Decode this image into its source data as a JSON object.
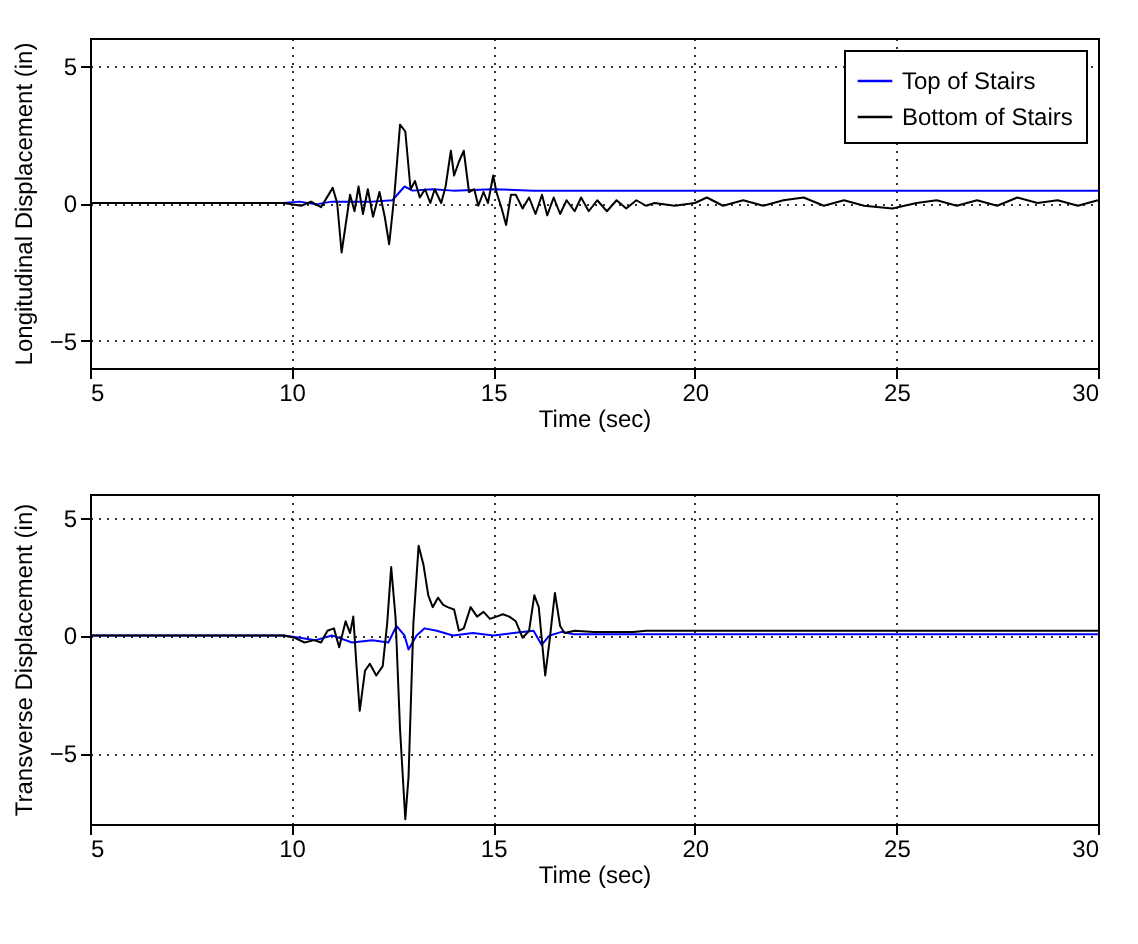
{
  "chart_data": [
    {
      "type": "line",
      "xlabel": "Time (sec)",
      "ylabel": "Longitudinal Displacement (in)",
      "xlim": [
        5,
        30
      ],
      "xticks": [
        5,
        10,
        15,
        20,
        25,
        30
      ],
      "ylim": [
        -6,
        6
      ],
      "yticks": [
        -5,
        0,
        5
      ],
      "grid": true,
      "legend": "top right",
      "line_style": "solid",
      "marker": "none",
      "series": [
        {
          "name": "Top of Stairs",
          "color": "#0000ff",
          "x": [
            5,
            9.8,
            10.2,
            10.6,
            11,
            12,
            12.5,
            12.8,
            13,
            13.5,
            14,
            15,
            16,
            18,
            20,
            25,
            30
          ],
          "values": [
            0,
            0,
            0.05,
            -0.05,
            0.05,
            0.05,
            0.1,
            0.6,
            0.45,
            0.5,
            0.45,
            0.5,
            0.45,
            0.45,
            0.45,
            0.45,
            0.45
          ]
        },
        {
          "name": "Bottom of Stairs",
          "color": "#000000",
          "x": [
            5,
            9.8,
            10.24,
            10.48,
            10.73,
            11.02,
            11.13,
            11.24,
            11.45,
            11.56,
            11.66,
            11.77,
            11.89,
            12.02,
            12.18,
            12.31,
            12.42,
            12.55,
            12.69,
            12.82,
            12.95,
            13.06,
            13.18,
            13.31,
            13.44,
            13.55,
            13.71,
            13.82,
            13.95,
            14.03,
            14.15,
            14.27,
            14.4,
            14.53,
            14.63,
            14.76,
            14.87,
            15.0,
            15.08,
            15.21,
            15.32,
            15.44,
            15.56,
            15.73,
            15.89,
            16.05,
            16.21,
            16.34,
            16.5,
            16.66,
            16.82,
            17.02,
            17.18,
            17.37,
            17.58,
            17.82,
            18.06,
            18.3,
            18.55,
            18.79,
            19,
            19.5,
            20,
            20.3,
            20.7,
            21.2,
            21.7,
            22.2,
            22.7,
            23.2,
            23.7,
            24.2,
            24.9,
            25.5,
            26,
            26.5,
            27,
            27.5,
            28,
            28.5,
            29,
            29.5,
            30
          ],
          "values": [
            0,
            0,
            -0.1,
            0.05,
            -0.15,
            0.55,
            0,
            -1.8,
            0.3,
            -0.3,
            0.6,
            -0.4,
            0.5,
            -0.5,
            0.4,
            -0.5,
            -1.5,
            0.3,
            2.85,
            2.6,
            0.5,
            0.8,
            0.2,
            0.5,
            0,
            0.5,
            0,
            0.6,
            1.9,
            1.0,
            1.5,
            1.9,
            0.4,
            0.5,
            -0.1,
            0.4,
            0,
            1.0,
            0.4,
            -0.2,
            -0.8,
            0.3,
            0.3,
            -0.2,
            0.2,
            -0.4,
            0.3,
            -0.45,
            0.2,
            -0.4,
            0.1,
            -0.3,
            0.2,
            -0.3,
            0.1,
            -0.3,
            0.1,
            -0.2,
            0.1,
            -0.1,
            0,
            -0.1,
            0,
            0.2,
            -0.1,
            0.1,
            -0.1,
            0.1,
            0.2,
            -0.1,
            0.1,
            -0.1,
            -0.2,
            0,
            0.1,
            -0.1,
            0.1,
            -0.1,
            0.2,
            0,
            0.1,
            -0.1,
            0.1
          ]
        }
      ]
    },
    {
      "type": "line",
      "xlabel": "Time (sec)",
      "ylabel": "Transverse Displacement (in)",
      "xlim": [
        5,
        30
      ],
      "xticks": [
        5,
        10,
        15,
        20,
        25,
        30
      ],
      "ylim": [
        -8,
        6
      ],
      "yticks": [
        -5,
        0,
        5
      ],
      "grid": true,
      "legend": "top right",
      "line_style": "solid",
      "marker": "none",
      "series": [
        {
          "name": "Top of Stairs",
          "color": "#0000ff",
          "x": [
            5,
            9.8,
            10.2,
            10.6,
            11,
            11.5,
            12.0,
            12.4,
            12.6,
            12.8,
            12.9,
            13.1,
            13.3,
            13.6,
            14,
            14.5,
            15,
            15.5,
            16.0,
            16.2,
            16.4,
            16.7,
            17,
            20,
            25,
            30
          ],
          "values": [
            0,
            0,
            -0.1,
            -0.2,
            0,
            -0.3,
            -0.2,
            -0.3,
            0.4,
            0,
            -0.6,
            0,
            0.3,
            0.2,
            0,
            0.1,
            0,
            0.1,
            0.2,
            -0.4,
            0,
            0.15,
            0.05,
            0.05,
            0.05,
            0.05
          ]
        },
        {
          "name": "Bottom of Stairs",
          "color": "#000000",
          "x": [
            5,
            9.8,
            10.08,
            10.32,
            10.56,
            10.73,
            10.89,
            11.05,
            11.18,
            11.34,
            11.45,
            11.53,
            11.61,
            11.69,
            11.82,
            11.94,
            12.1,
            12.26,
            12.37,
            12.47,
            12.58,
            12.69,
            12.82,
            12.9,
            13.02,
            13.15,
            13.27,
            13.39,
            13.5,
            13.63,
            13.76,
            13.87,
            14.03,
            14.15,
            14.27,
            14.44,
            14.6,
            14.76,
            14.92,
            15.08,
            15.24,
            15.4,
            15.56,
            15.73,
            15.89,
            16.02,
            16.13,
            16.29,
            16.4,
            16.53,
            16.66,
            16.77,
            17.02,
            17.5,
            18.47,
            18.79,
            20,
            25,
            30
          ],
          "values": [
            0,
            0,
            -0.1,
            -0.3,
            -0.2,
            -0.3,
            0.2,
            0.3,
            -0.5,
            0.6,
            0.1,
            0.8,
            -1.3,
            -3.2,
            -1.5,
            -1.2,
            -1.7,
            -1.3,
            0.5,
            2.9,
            0.7,
            -4.0,
            -7.8,
            -6,
            0.5,
            3.8,
            3.0,
            1.7,
            1.2,
            1.6,
            1.3,
            1.2,
            1.1,
            0.2,
            0.3,
            1.2,
            0.8,
            1.0,
            0.7,
            0.8,
            0.9,
            0.8,
            0.6,
            -0.1,
            0.2,
            1.7,
            1.2,
            -1.7,
            -0.2,
            1.8,
            0.4,
            0.1,
            0.2,
            0.15,
            0.15,
            0.2,
            0.2,
            0.2,
            0.2
          ]
        }
      ]
    }
  ]
}
